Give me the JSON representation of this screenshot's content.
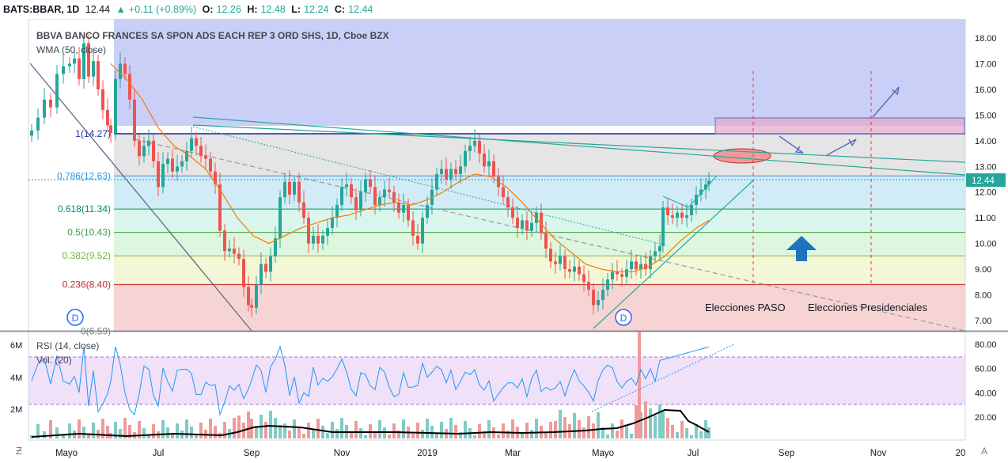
{
  "header": {
    "symbol": "BATS:BBAR, 1D",
    "last": "12.44",
    "change": "+0.11 (+0.89%)",
    "o_label": "O:",
    "o_value": "12.26",
    "h_label": "H:",
    "h_value": "12.48",
    "l_label": "L:",
    "l_value": "12.24",
    "c_label": "C:",
    "c_value": "12.44"
  },
  "chart_data": {
    "type": "candlestick",
    "title": "BBVA BANCO FRANCES SA SPON ADS EACH REP 3 ORD SHS, 1D, Cboe BZX",
    "indicator_main": "WMA (50, close)",
    "price_axis": {
      "min": 6.6,
      "max": 18.3,
      "ticks": [
        "18.00",
        "17.00",
        "16.00",
        "15.00",
        "14.00",
        "13.00",
        "12.00",
        "11.00",
        "10.00",
        "9.00",
        "8.00",
        "7.00"
      ],
      "last_price": "12.44"
    },
    "time_axis": {
      "labels": [
        "Mayo",
        "Jul",
        "Sep",
        "Nov",
        "2019",
        "Mar",
        "Mayo",
        "Jul",
        "Sep",
        "Nov",
        "20"
      ]
    },
    "fib_levels": [
      {
        "label": "1(14.27)",
        "value": 14.27
      },
      {
        "label": "0.786(12.63)",
        "value": 12.63
      },
      {
        "label": "0.618(11.34)",
        "value": 11.34
      },
      {
        "label": "0.5(10.43)",
        "value": 10.43
      },
      {
        "label": "0.382(9.52)",
        "value": 9.52
      },
      {
        "label": "0.236(8.40)",
        "value": 8.4
      },
      {
        "label": "0(6.59)",
        "value": 6.59
      }
    ],
    "key_points": [
      {
        "date": "2018-05",
        "price": 17.5
      },
      {
        "date": "2018-08-30",
        "price": 7.2
      },
      {
        "date": "2018-10",
        "price": 12.6
      },
      {
        "date": "2019-01",
        "price": 13.9
      },
      {
        "date": "2019-04-25",
        "price": 7.1
      },
      {
        "date": "2019-07-10",
        "price": 12.44
      }
    ],
    "annotations": [
      "Elecciones PASO",
      "Elecciones Presidenciales"
    ],
    "markers": [
      "D",
      "D"
    ],
    "rsi": {
      "label": "RSI (14, close)",
      "ticks": [
        "80.00",
        "60.00",
        "40.00",
        "20.00"
      ],
      "upper": 70,
      "lower": 30
    },
    "volume": {
      "label": "Vol. (20)",
      "ticks": [
        "6M",
        "4M",
        "2M"
      ]
    }
  },
  "colors": {
    "up": "#26a69a",
    "down": "#ef5350",
    "wma": "#f57c00",
    "rsi": "#2196f3",
    "band": "#9c27b0"
  }
}
